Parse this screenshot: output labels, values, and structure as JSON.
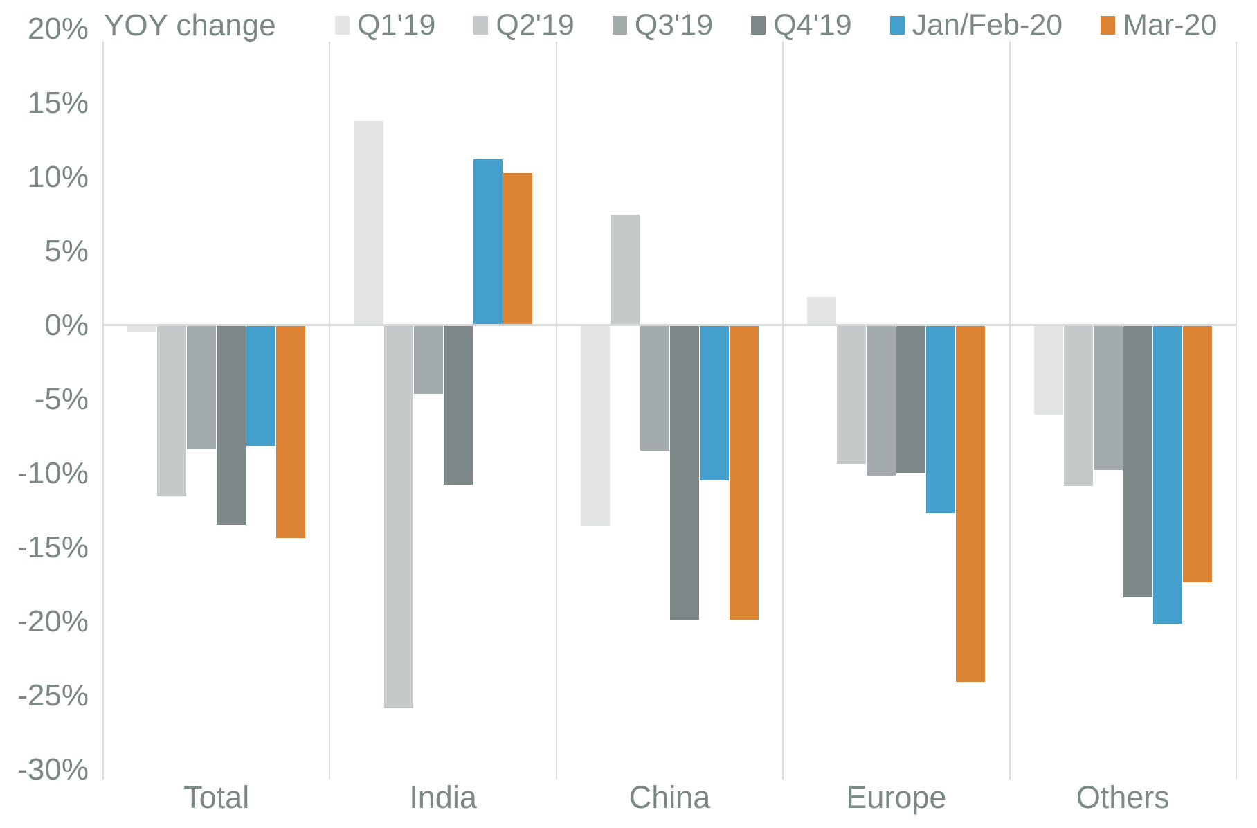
{
  "title": "YOY change",
  "colors": {
    "background": "#ffffff",
    "axis_text": "#7b8886",
    "gridline": "#d9dddc",
    "zero_line": "#d4d8d7"
  },
  "chart_data": {
    "type": "bar",
    "title": "YOY change",
    "categories": [
      "Total",
      "India",
      "China",
      "Europe",
      "Others"
    ],
    "series": [
      {
        "name": "Q1'19",
        "color": "#e3e5e5",
        "values": [
          -0.4,
          13.7,
          -13.5,
          1.8,
          -6.0
        ]
      },
      {
        "name": "Q2'19",
        "color": "#c4c9ca",
        "values": [
          -11.5,
          -25.8,
          7.4,
          -9.3,
          -10.8
        ]
      },
      {
        "name": "Q3'19",
        "color": "#a3abac",
        "values": [
          -8.3,
          -4.6,
          -8.4,
          -10.1,
          -9.7
        ]
      },
      {
        "name": "Q4'19",
        "color": "#7d8788",
        "values": [
          -13.4,
          -10.7,
          -19.8,
          -9.9,
          -18.3
        ]
      },
      {
        "name": "Jan/Feb-20",
        "color": "#449fcd",
        "values": [
          -8.1,
          11.1,
          -10.4,
          -12.6,
          -20.1
        ]
      },
      {
        "name": "Mar-20",
        "color": "#dc8434",
        "values": [
          -14.3,
          10.2,
          -19.8,
          -24.0,
          -17.3
        ]
      }
    ],
    "ylim": [
      -30,
      20
    ],
    "ytick_step": 5,
    "ytick_values": [
      20,
      15,
      10,
      5,
      0,
      -5,
      -10,
      -15,
      -20,
      -25,
      -30
    ],
    "ytick_labels": [
      "20%",
      "15%",
      "10%",
      "5%",
      "0%",
      "-5%",
      "-10%",
      "-15%",
      "-20%",
      "-25%",
      "-30%"
    ],
    "legend_position": "top",
    "grid": "vertical-category-dividers-only",
    "unit": "percent"
  }
}
